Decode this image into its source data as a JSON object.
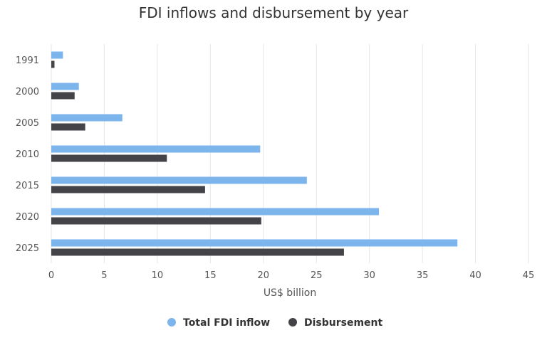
{
  "chart_data": {
    "type": "bar",
    "orientation": "horizontal",
    "title": "FDI inflows and disbursement by year",
    "xlabel": "US$ billion",
    "ylabel": "",
    "categories": [
      "1991",
      "2000",
      "2005",
      "2010",
      "2015",
      "2020",
      "2025"
    ],
    "series": [
      {
        "name": "Total FDI inflow",
        "color": "#7cb5ec",
        "values": [
          1.1,
          2.6,
          6.7,
          19.7,
          24.1,
          30.9,
          38.3
        ]
      },
      {
        "name": "Disbursement",
        "color": "#434348",
        "values": [
          0.3,
          2.2,
          3.2,
          10.9,
          14.5,
          19.8,
          27.6
        ]
      }
    ],
    "xlim": [
      0,
      45
    ],
    "xticks": [
      "0",
      "5",
      "10",
      "15",
      "20",
      "25",
      "30",
      "35",
      "40",
      "45"
    ],
    "grid": true,
    "legend_position": "bottom-center"
  }
}
